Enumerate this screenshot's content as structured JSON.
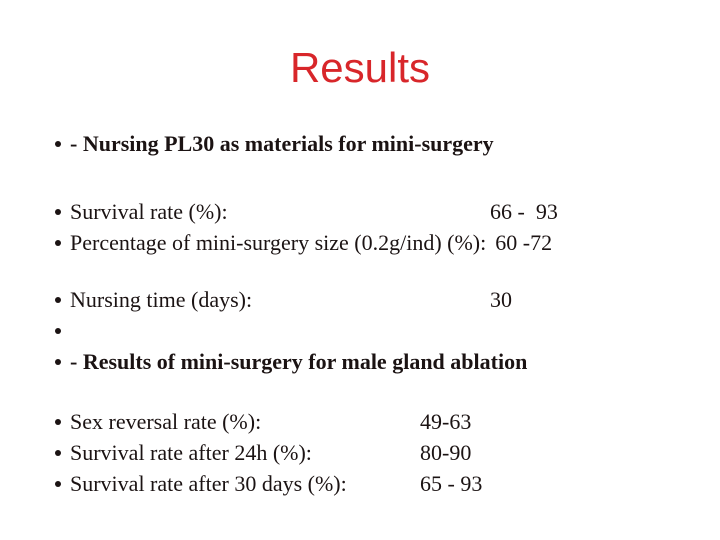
{
  "slide": {
    "title": "Results",
    "colors": {
      "title_red": "#d8262a",
      "body_text": "#1b1313",
      "background": "#ffffff"
    },
    "icons": {
      "bullet": "dot-icon"
    },
    "lines": [
      {
        "text": "- Nursing PL30 as materials for mini-surgery",
        "value": ""
      },
      {
        "text": "Survival rate (%):",
        "value": "66 -  93"
      },
      {
        "text": "Percentage of mini-surgery size (0.2g/ind) (%):",
        "value": "60 -72"
      },
      {
        "text": "Nursing time (days):",
        "value": "30"
      },
      {
        "text": "",
        "value": ""
      },
      {
        "text": "- Results of mini-surgery for male gland ablation",
        "value": ""
      },
      {
        "text": "Sex reversal rate (%):",
        "value": "49-63"
      },
      {
        "text": "Survival rate after 24h (%):",
        "value": "80-90"
      },
      {
        "text": "Survival rate after 30 days (%):",
        "value": "65 - 93"
      }
    ]
  }
}
